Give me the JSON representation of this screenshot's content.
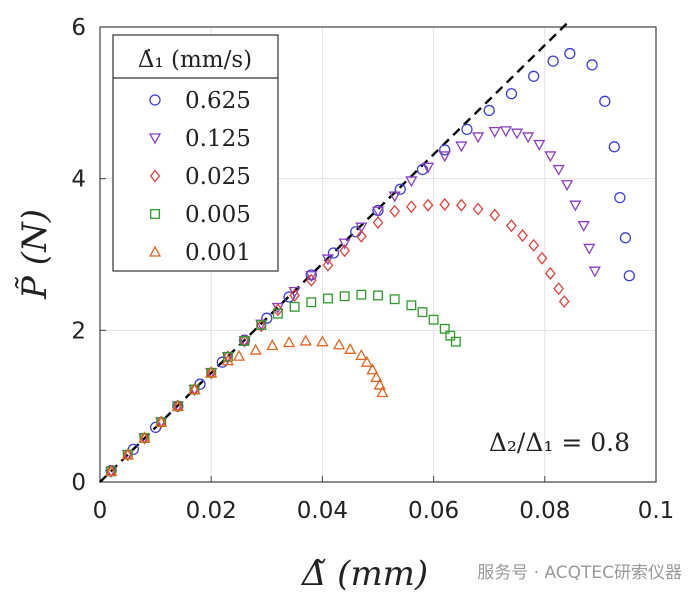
{
  "chart_data": {
    "type": "scatter",
    "xlabel": "Δ̃ (mm)",
    "ylabel": "P̃ (N)",
    "xlim": [
      0,
      0.1
    ],
    "ylim": [
      0,
      6
    ],
    "xticks": [
      "0",
      "0.02",
      "0.04",
      "0.06",
      "0.08",
      "0.1"
    ],
    "yticks": [
      "0",
      "2",
      "4",
      "6"
    ],
    "grid": true,
    "legend": {
      "title": "Δ̇₁ (mm/s)",
      "placement": "top-left"
    },
    "annotation": "Δ₂/Δ₁ = 0.8",
    "fit_line": {
      "style": "dashed",
      "color": "#000000",
      "slope": 72,
      "x_end": 0.084
    },
    "series": [
      {
        "name": "0.625",
        "marker": "circle",
        "color": "#3b3fd6",
        "x": [
          0.002,
          0.006,
          0.01,
          0.014,
          0.018,
          0.022,
          0.026,
          0.03,
          0.034,
          0.038,
          0.042,
          0.046,
          0.05,
          0.054,
          0.058,
          0.062,
          0.066,
          0.07,
          0.074,
          0.078,
          0.0815,
          0.0845,
          0.0885,
          0.0908,
          0.0925,
          0.0935,
          0.0945,
          0.0952
        ],
        "y": [
          0.15,
          0.43,
          0.72,
          1.0,
          1.29,
          1.58,
          1.87,
          2.16,
          2.44,
          2.73,
          3.02,
          3.3,
          3.58,
          3.86,
          4.12,
          4.38,
          4.65,
          4.9,
          5.12,
          5.35,
          5.55,
          5.65,
          5.5,
          5.02,
          4.42,
          3.75,
          3.22,
          2.72
        ]
      },
      {
        "name": "0.125",
        "marker": "triangle-down",
        "color": "#8a3fc0",
        "x": [
          0.002,
          0.005,
          0.008,
          0.011,
          0.014,
          0.017,
          0.02,
          0.023,
          0.026,
          0.029,
          0.032,
          0.035,
          0.038,
          0.041,
          0.044,
          0.047,
          0.05,
          0.053,
          0.056,
          0.059,
          0.062,
          0.065,
          0.068,
          0.071,
          0.073,
          0.075,
          0.077,
          0.079,
          0.081,
          0.0825,
          0.084,
          0.0855,
          0.087,
          0.088,
          0.089
        ],
        "y": [
          0.14,
          0.36,
          0.58,
          0.79,
          1.0,
          1.22,
          1.44,
          1.65,
          1.86,
          2.08,
          2.3,
          2.51,
          2.72,
          2.94,
          3.15,
          3.36,
          3.57,
          3.77,
          3.97,
          4.15,
          4.3,
          4.43,
          4.55,
          4.62,
          4.63,
          4.6,
          4.55,
          4.45,
          4.3,
          4.12,
          3.92,
          3.65,
          3.38,
          3.08,
          2.78
        ]
      },
      {
        "name": "0.025",
        "marker": "diamond",
        "color": "#e0423c",
        "x": [
          0.002,
          0.005,
          0.008,
          0.011,
          0.014,
          0.017,
          0.02,
          0.023,
          0.026,
          0.029,
          0.032,
          0.035,
          0.038,
          0.041,
          0.044,
          0.047,
          0.05,
          0.053,
          0.056,
          0.059,
          0.062,
          0.065,
          0.068,
          0.071,
          0.074,
          0.076,
          0.078,
          0.0795,
          0.081,
          0.0825,
          0.0835
        ],
        "y": [
          0.14,
          0.36,
          0.58,
          0.79,
          1.0,
          1.22,
          1.44,
          1.65,
          1.86,
          2.06,
          2.27,
          2.46,
          2.66,
          2.86,
          3.05,
          3.24,
          3.42,
          3.57,
          3.63,
          3.65,
          3.66,
          3.65,
          3.6,
          3.52,
          3.38,
          3.25,
          3.12,
          2.95,
          2.75,
          2.55,
          2.38
        ]
      },
      {
        "name": "0.005",
        "marker": "square",
        "color": "#2f9a2a",
        "x": [
          0.002,
          0.005,
          0.008,
          0.011,
          0.014,
          0.017,
          0.02,
          0.023,
          0.026,
          0.029,
          0.032,
          0.035,
          0.038,
          0.041,
          0.044,
          0.047,
          0.05,
          0.053,
          0.056,
          0.058,
          0.06,
          0.062,
          0.063,
          0.064
        ],
        "y": [
          0.14,
          0.36,
          0.58,
          0.79,
          1.0,
          1.22,
          1.44,
          1.65,
          1.86,
          2.07,
          2.22,
          2.31,
          2.37,
          2.42,
          2.45,
          2.47,
          2.46,
          2.41,
          2.33,
          2.24,
          2.14,
          2.02,
          1.93,
          1.85
        ]
      },
      {
        "name": "0.001",
        "marker": "triangle-up",
        "color": "#e0651f",
        "x": [
          0.002,
          0.005,
          0.008,
          0.011,
          0.014,
          0.017,
          0.02,
          0.023,
          0.025,
          0.028,
          0.031,
          0.034,
          0.037,
          0.04,
          0.043,
          0.045,
          0.047,
          0.048,
          0.049,
          0.0497,
          0.0503,
          0.0508
        ],
        "y": [
          0.14,
          0.36,
          0.58,
          0.79,
          1.0,
          1.22,
          1.44,
          1.6,
          1.66,
          1.74,
          1.8,
          1.84,
          1.86,
          1.85,
          1.81,
          1.75,
          1.67,
          1.58,
          1.48,
          1.38,
          1.28,
          1.18
        ]
      }
    ]
  },
  "watermark": "服务号 · ACQTEC研索仪器"
}
